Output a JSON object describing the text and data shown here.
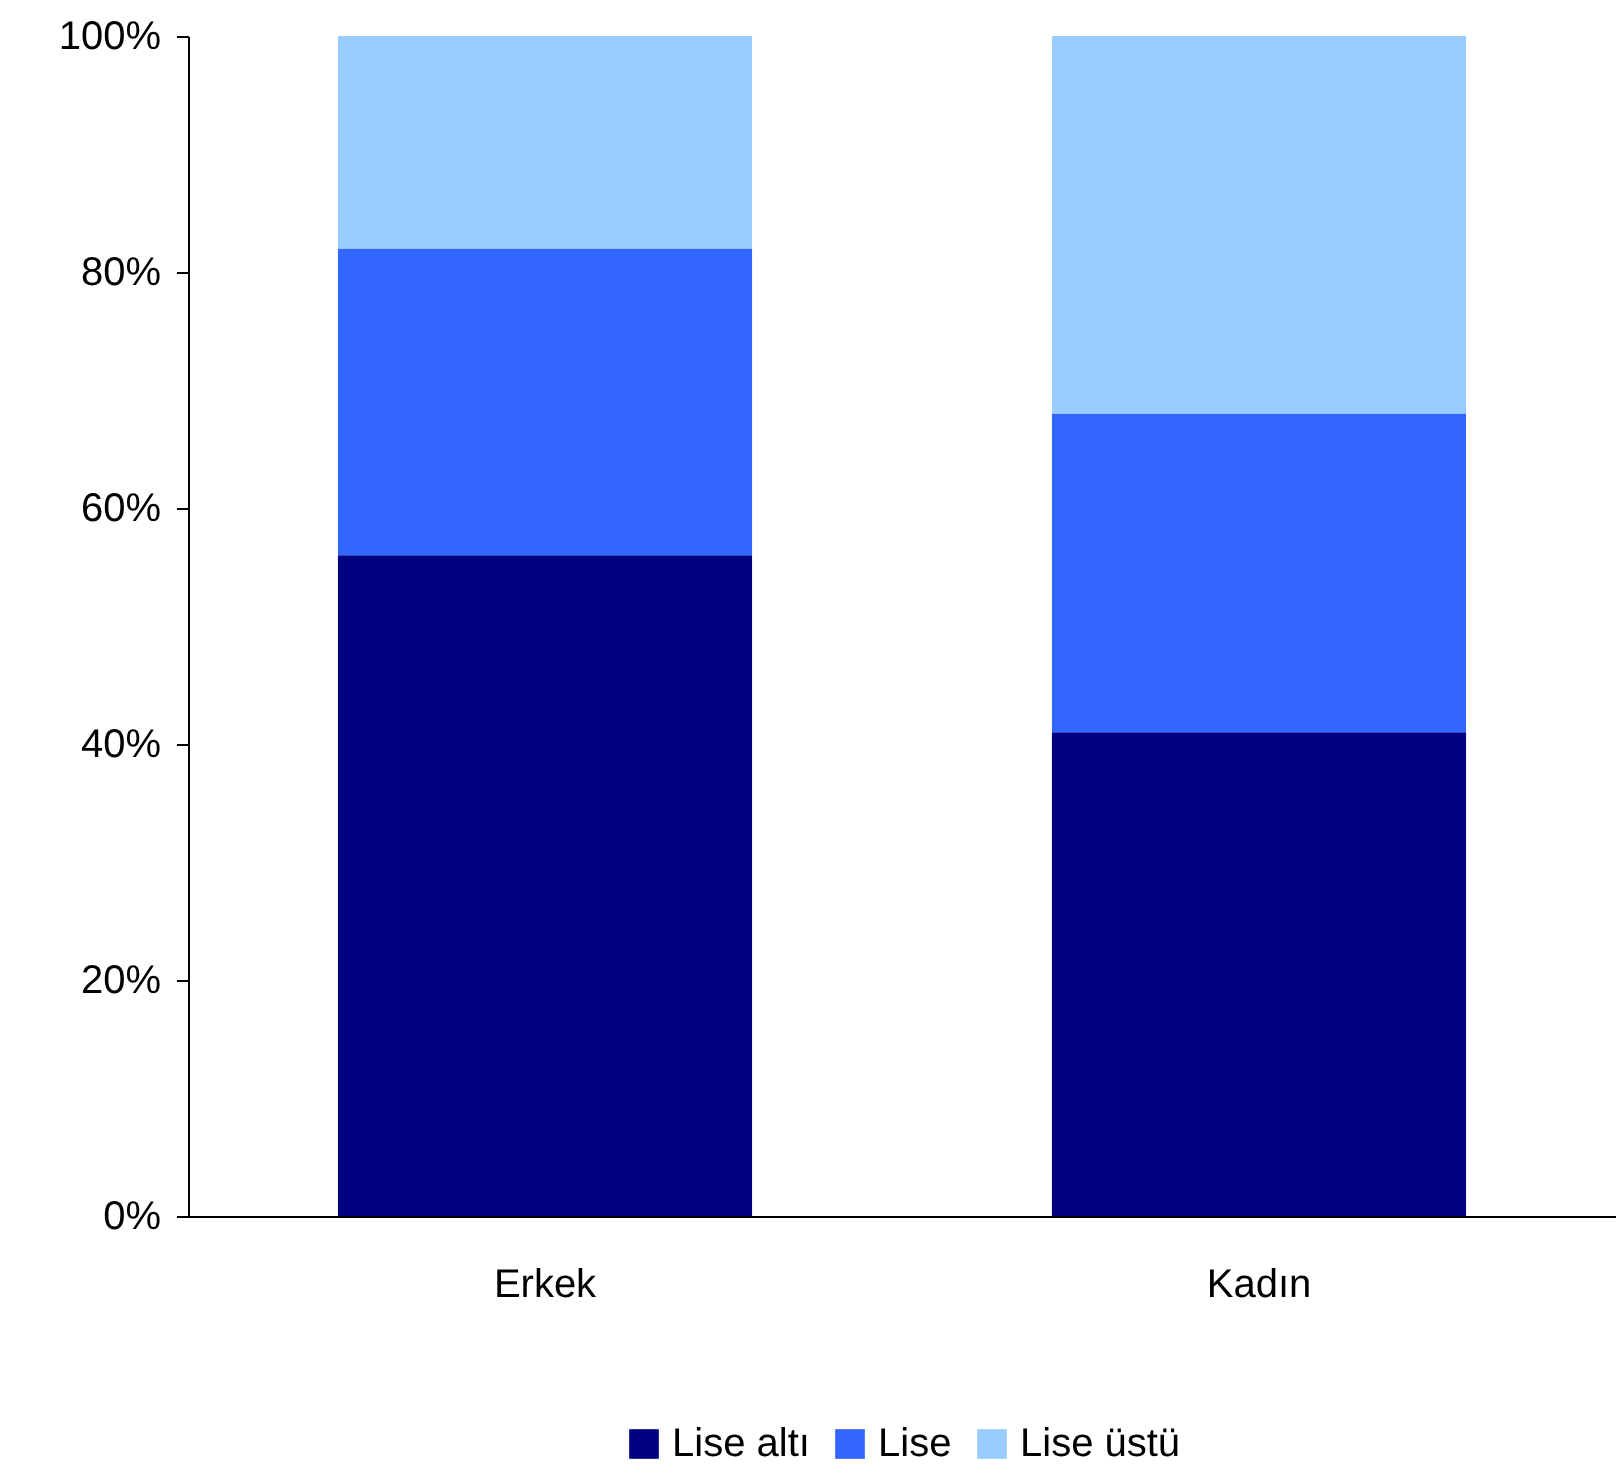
{
  "chart_data": {
    "type": "bar",
    "stacked": true,
    "categories": [
      "Erkek",
      "Kadın"
    ],
    "series": [
      {
        "name": "Lise altı",
        "color": "#000080",
        "values": [
          56,
          41
        ]
      },
      {
        "name": "Lise",
        "color": "#3366ff",
        "values": [
          26,
          27
        ]
      },
      {
        "name": "Lise üstü",
        "color": "#99ccff",
        "values": [
          18,
          32
        ]
      }
    ],
    "ylim": [
      0,
      100
    ],
    "yticks": [
      {
        "value": 0,
        "label": "0%"
      },
      {
        "value": 20,
        "label": "20%"
      },
      {
        "value": 40,
        "label": "40%"
      },
      {
        "value": 60,
        "label": "60%"
      },
      {
        "value": 80,
        "label": "80%"
      },
      {
        "value": 100,
        "label": "100%"
      }
    ],
    "grid": false,
    "legend": "bottom"
  }
}
